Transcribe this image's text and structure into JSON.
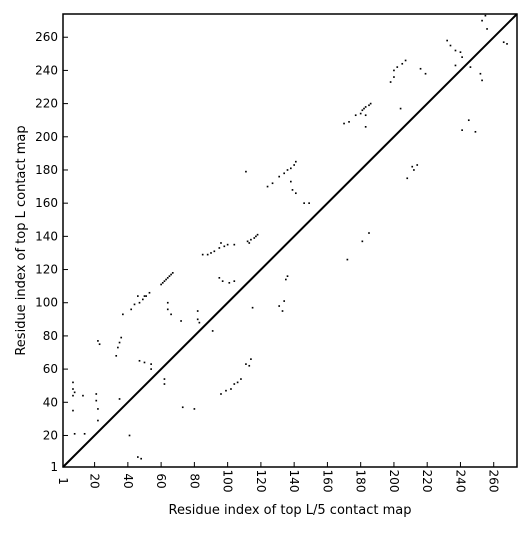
{
  "chart_data": {
    "type": "scatter",
    "title": "",
    "xlabel": "Residue index of top L/5 contact map",
    "ylabel": "Residue index of top L contact map",
    "xlim": [
      1,
      274
    ],
    "ylim": [
      1,
      274
    ],
    "xticks": [
      1,
      20,
      40,
      60,
      80,
      100,
      120,
      140,
      160,
      180,
      200,
      220,
      240,
      260
    ],
    "yticks": [
      1,
      20,
      40,
      60,
      80,
      100,
      120,
      140,
      160,
      180,
      200,
      220,
      240,
      260
    ],
    "diagonal": true,
    "grid": false,
    "marker_color": "#000000",
    "series": [
      {
        "values": [
          [
            47,
            100
          ],
          [
            49,
            102
          ],
          [
            51,
            104
          ],
          [
            53,
            106
          ],
          [
            46,
            104
          ],
          [
            50,
            104
          ],
          [
            44,
            99
          ],
          [
            42,
            96
          ],
          [
            37,
            93
          ],
          [
            36,
            79
          ],
          [
            35,
            76
          ],
          [
            34,
            73
          ],
          [
            33,
            68
          ],
          [
            22,
            77
          ],
          [
            23,
            75
          ],
          [
            7,
            52
          ],
          [
            7,
            48
          ],
          [
            7,
            44
          ],
          [
            8,
            46
          ],
          [
            7,
            35
          ],
          [
            8,
            21
          ],
          [
            14,
            21
          ],
          [
            13,
            44
          ],
          [
            21,
            45
          ],
          [
            21,
            41
          ],
          [
            22,
            36
          ],
          [
            22,
            29
          ],
          [
            35,
            42
          ],
          [
            41,
            20
          ],
          [
            46,
            7
          ],
          [
            48,
            6
          ],
          [
            47,
            65
          ],
          [
            50,
            64
          ],
          [
            54,
            63
          ],
          [
            54,
            60
          ],
          [
            62,
            54
          ],
          [
            62,
            51
          ],
          [
            60,
            111
          ],
          [
            61,
            112
          ],
          [
            62,
            113
          ],
          [
            63,
            114
          ],
          [
            64,
            115
          ],
          [
            65,
            116
          ],
          [
            66,
            117
          ],
          [
            67,
            118
          ],
          [
            64,
            96
          ],
          [
            64,
            100
          ],
          [
            66,
            93
          ],
          [
            72,
            89
          ],
          [
            82,
            95
          ],
          [
            82,
            90
          ],
          [
            83,
            88
          ],
          [
            73,
            37
          ],
          [
            80,
            36
          ],
          [
            85,
            129
          ],
          [
            88,
            129
          ],
          [
            90,
            130
          ],
          [
            92,
            131
          ],
          [
            95,
            133
          ],
          [
            96,
            136
          ],
          [
            98,
            134
          ],
          [
            100,
            135
          ],
          [
            104,
            135
          ],
          [
            91,
            83
          ],
          [
            95,
            115
          ],
          [
            97,
            113
          ],
          [
            101,
            112
          ],
          [
            104,
            113
          ],
          [
            96,
            45
          ],
          [
            99,
            47
          ],
          [
            102,
            48
          ],
          [
            104,
            51
          ],
          [
            106,
            52
          ],
          [
            108,
            54
          ],
          [
            111,
            63
          ],
          [
            113,
            62
          ],
          [
            114,
            66
          ],
          [
            112,
            137
          ],
          [
            113,
            136
          ],
          [
            114,
            138
          ],
          [
            116,
            139
          ],
          [
            117,
            140
          ],
          [
            118,
            141
          ],
          [
            111,
            179
          ],
          [
            115,
            97
          ],
          [
            135,
            114
          ],
          [
            136,
            116
          ],
          [
            134,
            101
          ],
          [
            131,
            98
          ],
          [
            133,
            95
          ],
          [
            124,
            170
          ],
          [
            127,
            172
          ],
          [
            131,
            176
          ],
          [
            134,
            178
          ],
          [
            136,
            180
          ],
          [
            138,
            181
          ],
          [
            140,
            183
          ],
          [
            141,
            185
          ],
          [
            138,
            173
          ],
          [
            139,
            168
          ],
          [
            141,
            166
          ],
          [
            146,
            160
          ],
          [
            149,
            160
          ],
          [
            170,
            208
          ],
          [
            173,
            209
          ],
          [
            177,
            213
          ],
          [
            180,
            214
          ],
          [
            181,
            216
          ],
          [
            182,
            217
          ],
          [
            183,
            218
          ],
          [
            185,
            219
          ],
          [
            186,
            220
          ],
          [
            183,
            213
          ],
          [
            183,
            206
          ],
          [
            181,
            137
          ],
          [
            185,
            142
          ],
          [
            172,
            126
          ],
          [
            198,
            233
          ],
          [
            200,
            236
          ],
          [
            200,
            240
          ],
          [
            202,
            242
          ],
          [
            205,
            244
          ],
          [
            207,
            246
          ],
          [
            204,
            217
          ],
          [
            208,
            175
          ],
          [
            211,
            182
          ],
          [
            212,
            180
          ],
          [
            214,
            183
          ],
          [
            216,
            241
          ],
          [
            219,
            238
          ],
          [
            232,
            258
          ],
          [
            234,
            255
          ],
          [
            237,
            252
          ],
          [
            240,
            251
          ],
          [
            241,
            248
          ],
          [
            237,
            243
          ],
          [
            241,
            204
          ],
          [
            245,
            210
          ],
          [
            246,
            242
          ],
          [
            249,
            203
          ],
          [
            252,
            238
          ],
          [
            253,
            234
          ],
          [
            253,
            270
          ],
          [
            255,
            273
          ],
          [
            256,
            265
          ],
          [
            266,
            257
          ],
          [
            268,
            256
          ]
        ]
      }
    ]
  }
}
